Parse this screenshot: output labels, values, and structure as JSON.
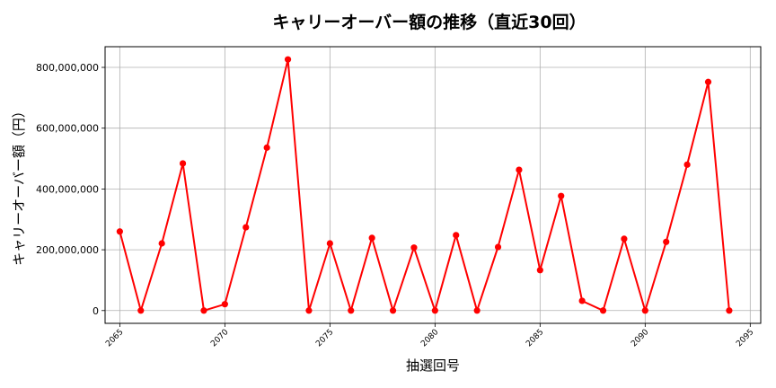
{
  "chart_data": {
    "type": "line",
    "title": "キャリーオーバー額の推移（直近30回）",
    "xlabel": "抽選回号",
    "ylabel": "キャリーオーバー額（円）",
    "x": [
      2065,
      2066,
      2067,
      2068,
      2069,
      2070,
      2071,
      2072,
      2073,
      2074,
      2075,
      2076,
      2077,
      2078,
      2079,
      2080,
      2081,
      2082,
      2083,
      2084,
      2085,
      2086,
      2087,
      2088,
      2089,
      2090,
      2091,
      2092,
      2093,
      2094
    ],
    "series": [
      {
        "name": "キャリーオーバー額",
        "color": "#ff0000",
        "marker": "circle",
        "values": [
          260000000,
          0,
          221000000,
          484000000,
          0,
          21000000,
          274000000,
          536000000,
          826000000,
          0,
          221000000,
          0,
          239000000,
          0,
          207000000,
          0,
          248000000,
          0,
          209000000,
          463000000,
          133000000,
          377000000,
          32000000,
          0,
          236000000,
          0,
          226000000,
          480000000,
          752000000,
          0
        ]
      }
    ],
    "xlim": [
      2064.3,
      2095.5
    ],
    "ylim": [
      -42000000,
      868000000
    ],
    "x_ticks": [
      2065,
      2070,
      2075,
      2080,
      2085,
      2090,
      2095
    ],
    "x_tick_labels": [
      "2065",
      "2070",
      "2075",
      "2080",
      "2085",
      "2090",
      "2095"
    ],
    "y_ticks": [
      0,
      200000000,
      400000000,
      600000000,
      800000000
    ],
    "y_tick_labels": [
      "0",
      "200,000,000",
      "400,000,000",
      "600,000,000",
      "800,000,000"
    ],
    "grid": true,
    "legend": null
  },
  "colors": {
    "line": "#ff0000",
    "grid": "#b0b0b0",
    "frame": "#000000"
  }
}
